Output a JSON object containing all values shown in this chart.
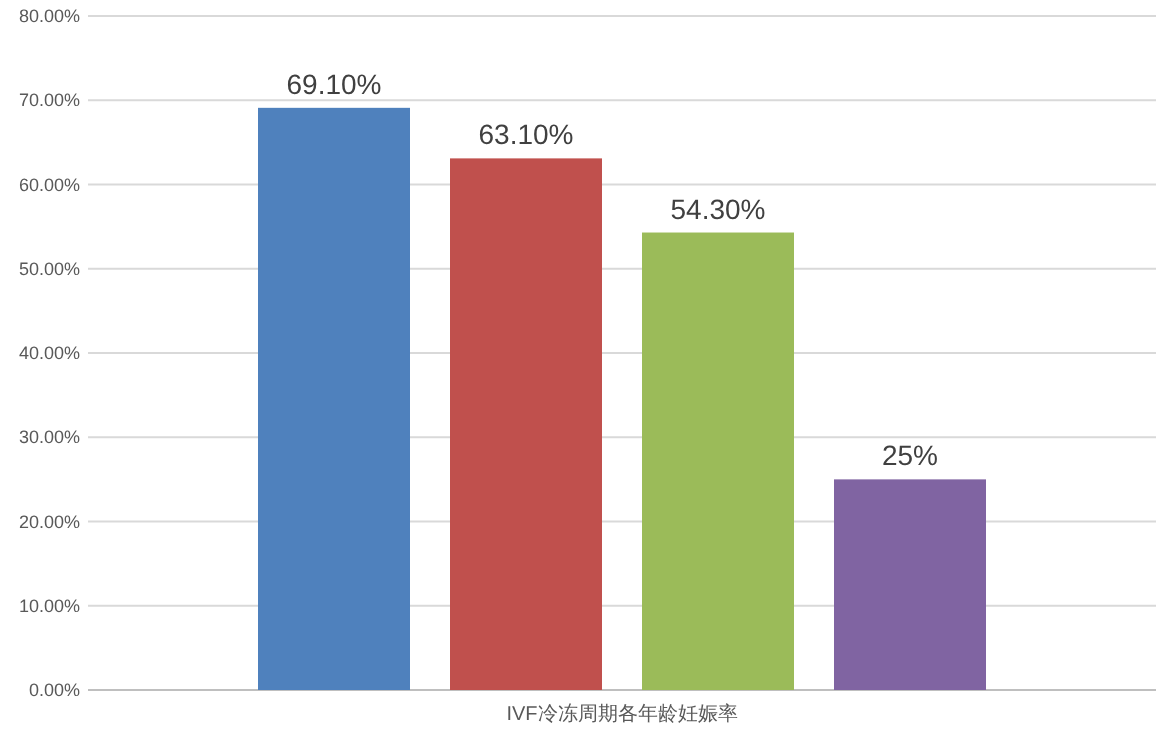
{
  "chart_data": {
    "type": "bar",
    "xlabel": "IVF冷冻周期各年龄妊娠率",
    "categories": [
      null,
      null,
      null,
      null
    ],
    "values": [
      69.1,
      63.1,
      54.3,
      25
    ],
    "colors": [
      "#4f81bd",
      "#c0504d",
      "#9bbb59",
      "#8064a2"
    ],
    "value_labels": [
      "69.10%",
      "63.10%",
      "54.30%",
      "25%"
    ],
    "ylim": [
      0,
      80
    ],
    "yticks": [
      {
        "value": 0,
        "label": "0.00%"
      },
      {
        "value": 10,
        "label": "10.00%"
      },
      {
        "value": 20,
        "label": "20.00%"
      },
      {
        "value": 30,
        "label": "30.00%"
      },
      {
        "value": 40,
        "label": "40.00%"
      },
      {
        "value": 50,
        "label": "50.00%"
      },
      {
        "value": 60,
        "label": "60.00%"
      },
      {
        "value": 70,
        "label": "70.00%"
      },
      {
        "value": 80,
        "label": "80.00%"
      }
    ],
    "grid": "y"
  }
}
